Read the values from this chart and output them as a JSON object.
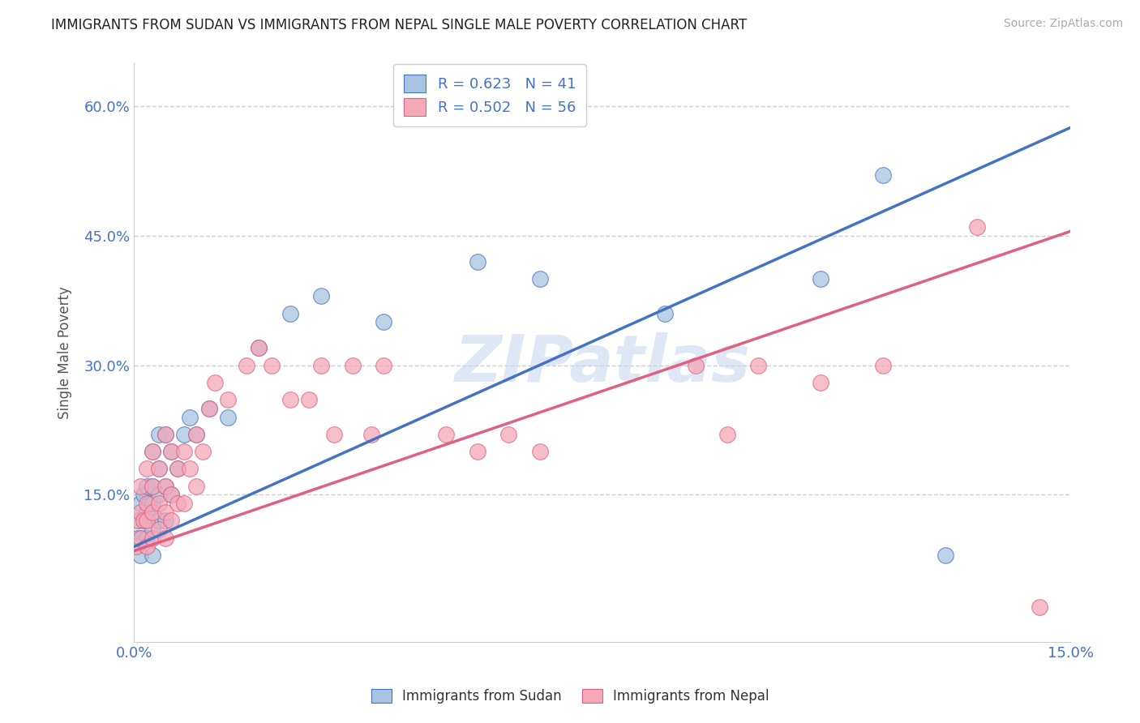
{
  "title": "IMMIGRANTS FROM SUDAN VS IMMIGRANTS FROM NEPAL SINGLE MALE POVERTY CORRELATION CHART",
  "source": "Source: ZipAtlas.com",
  "ylabel": "Single Male Poverty",
  "x_min": 0.0,
  "x_max": 0.15,
  "y_min": -0.02,
  "y_max": 0.65,
  "x_ticks": [
    0.0,
    0.03,
    0.06,
    0.09,
    0.12,
    0.15
  ],
  "x_tick_labels": [
    "0.0%",
    "",
    "",
    "",
    "",
    "15.0%"
  ],
  "y_ticks": [
    0.15,
    0.3,
    0.45,
    0.6
  ],
  "y_tick_labels": [
    "15.0%",
    "30.0%",
    "45.0%",
    "60.0%"
  ],
  "sudan_color": "#a8c4e0",
  "nepal_color": "#f4a8b8",
  "sudan_line_color": "#4472c4",
  "nepal_line_color": "#e06080",
  "sudan_R": 0.623,
  "sudan_N": 41,
  "nepal_R": 0.502,
  "nepal_N": 56,
  "legend_label_sudan": "R = 0.623   N = 41",
  "legend_label_nepal": "R = 0.502   N = 56",
  "watermark": "ZIPatlas",
  "watermark_color": "#c8d8f0",
  "sudan_line_x0": 0.0,
  "sudan_line_y0": 0.09,
  "sudan_line_x1": 0.15,
  "sudan_line_y1": 0.575,
  "nepal_line_x0": 0.0,
  "nepal_line_y0": 0.085,
  "nepal_line_x1": 0.15,
  "nepal_line_y1": 0.455,
  "sudan_x": [
    0.0005,
    0.0008,
    0.001,
    0.001,
    0.0012,
    0.0015,
    0.0015,
    0.002,
    0.002,
    0.002,
    0.0025,
    0.003,
    0.003,
    0.003,
    0.003,
    0.003,
    0.004,
    0.004,
    0.004,
    0.004,
    0.005,
    0.005,
    0.005,
    0.006,
    0.006,
    0.007,
    0.008,
    0.009,
    0.01,
    0.012,
    0.015,
    0.02,
    0.025,
    0.03,
    0.04,
    0.055,
    0.065,
    0.085,
    0.11,
    0.12,
    0.13
  ],
  "sudan_y": [
    0.1,
    0.12,
    0.08,
    0.14,
    0.1,
    0.12,
    0.15,
    0.1,
    0.13,
    0.16,
    0.14,
    0.08,
    0.11,
    0.14,
    0.16,
    0.2,
    0.12,
    0.15,
    0.18,
    0.22,
    0.12,
    0.16,
    0.22,
    0.15,
    0.2,
    0.18,
    0.22,
    0.24,
    0.22,
    0.25,
    0.24,
    0.32,
    0.36,
    0.38,
    0.35,
    0.42,
    0.4,
    0.36,
    0.4,
    0.52,
    0.08
  ],
  "nepal_x": [
    0.0004,
    0.0005,
    0.001,
    0.001,
    0.001,
    0.0015,
    0.002,
    0.002,
    0.002,
    0.002,
    0.003,
    0.003,
    0.003,
    0.003,
    0.004,
    0.004,
    0.004,
    0.005,
    0.005,
    0.005,
    0.005,
    0.006,
    0.006,
    0.006,
    0.007,
    0.007,
    0.008,
    0.008,
    0.009,
    0.01,
    0.01,
    0.011,
    0.012,
    0.013,
    0.015,
    0.018,
    0.02,
    0.022,
    0.025,
    0.028,
    0.03,
    0.032,
    0.035,
    0.038,
    0.04,
    0.05,
    0.055,
    0.06,
    0.065,
    0.09,
    0.095,
    0.1,
    0.11,
    0.12,
    0.135,
    0.145
  ],
  "nepal_y": [
    0.09,
    0.12,
    0.1,
    0.13,
    0.16,
    0.12,
    0.09,
    0.12,
    0.14,
    0.18,
    0.1,
    0.13,
    0.16,
    0.2,
    0.11,
    0.14,
    0.18,
    0.1,
    0.13,
    0.16,
    0.22,
    0.12,
    0.15,
    0.2,
    0.14,
    0.18,
    0.14,
    0.2,
    0.18,
    0.16,
    0.22,
    0.2,
    0.25,
    0.28,
    0.26,
    0.3,
    0.32,
    0.3,
    0.26,
    0.26,
    0.3,
    0.22,
    0.3,
    0.22,
    0.3,
    0.22,
    0.2,
    0.22,
    0.2,
    0.3,
    0.22,
    0.3,
    0.28,
    0.3,
    0.46,
    0.02
  ]
}
